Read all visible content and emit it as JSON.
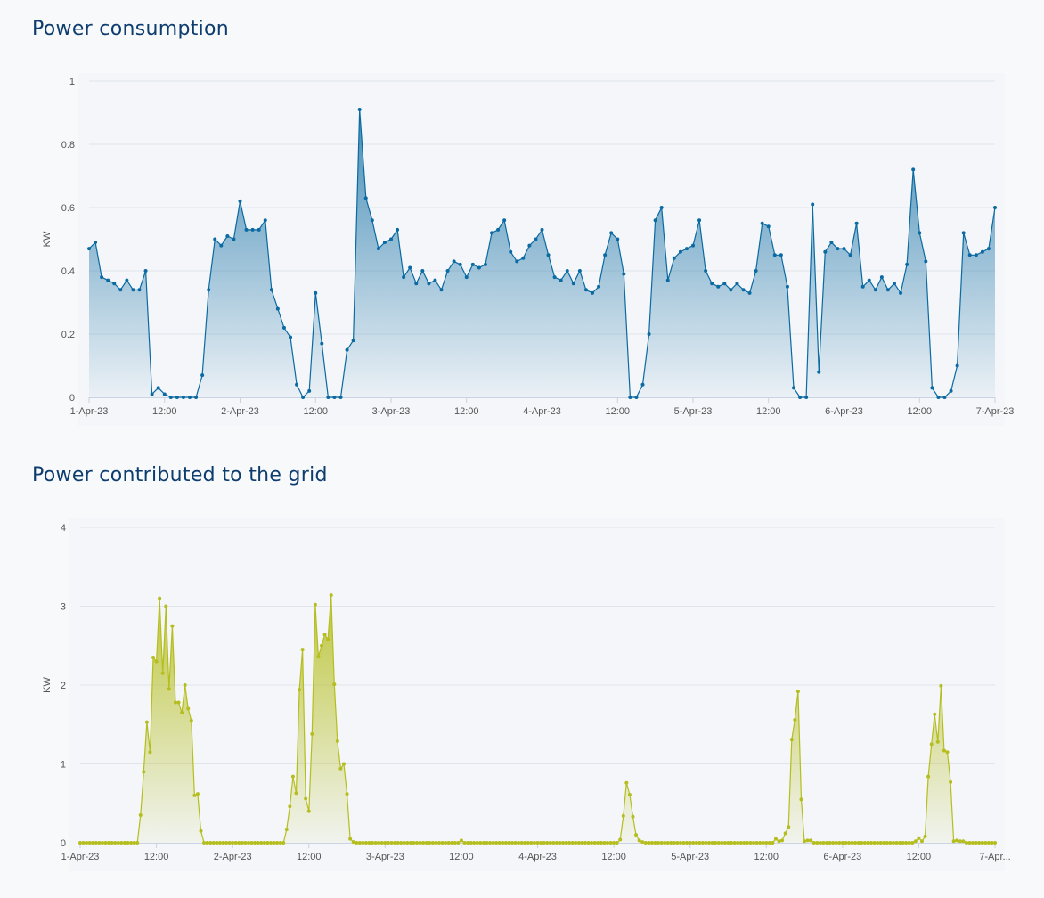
{
  "chart_data": [
    {
      "type": "area",
      "title": "Power consumption",
      "ylabel": "KW",
      "xlabel": "",
      "ylim": [
        0,
        1
      ],
      "yticks": [
        "0",
        "0.2",
        "0.4",
        "0.6",
        "0.8",
        "1"
      ],
      "ytick_values": [
        0,
        0.2,
        0.4,
        0.6,
        0.8,
        1
      ],
      "xticks": [
        "1-Apr-23",
        "12:00",
        "2-Apr-23",
        "12:00",
        "3-Apr-23",
        "12:00",
        "4-Apr-23",
        "12:00",
        "5-Apr-23",
        "12:00",
        "6-Apr-23",
        "12:00",
        "7-Apr-23"
      ],
      "x_start": "2023-04-01 00:00",
      "x_end": "2023-04-07 00:00",
      "interval_minutes": 60,
      "grid": true,
      "color": "#0a6aa1",
      "values": [
        0.47,
        0.49,
        0.38,
        0.37,
        0.36,
        0.34,
        0.37,
        0.34,
        0.34,
        0.4,
        0.01,
        0.03,
        0.01,
        0,
        0,
        0,
        0,
        0,
        0.07,
        0.34,
        0.5,
        0.48,
        0.51,
        0.5,
        0.62,
        0.53,
        0.53,
        0.53,
        0.56,
        0.34,
        0.28,
        0.22,
        0.19,
        0.04,
        0,
        0.02,
        0.33,
        0.17,
        0,
        0,
        0,
        0.15,
        0.18,
        0.91,
        0.63,
        0.56,
        0.47,
        0.49,
        0.5,
        0.53,
        0.38,
        0.41,
        0.36,
        0.4,
        0.36,
        0.37,
        0.34,
        0.4,
        0.43,
        0.42,
        0.38,
        0.42,
        0.41,
        0.42,
        0.52,
        0.53,
        0.56,
        0.46,
        0.43,
        0.44,
        0.48,
        0.5,
        0.53,
        0.45,
        0.38,
        0.37,
        0.4,
        0.36,
        0.4,
        0.34,
        0.33,
        0.35,
        0.45,
        0.52,
        0.5,
        0.39,
        0,
        0,
        0.04,
        0.2,
        0.56,
        0.6,
        0.37,
        0.44,
        0.46,
        0.47,
        0.48,
        0.56,
        0.4,
        0.36,
        0.35,
        0.36,
        0.34,
        0.36,
        0.34,
        0.33,
        0.4,
        0.55,
        0.54,
        0.45,
        0.45,
        0.35,
        0.03,
        0,
        0,
        0.61,
        0.08,
        0.46,
        0.49,
        0.47,
        0.47,
        0.45,
        0.55,
        0.35,
        0.37,
        0.34,
        0.38,
        0.34,
        0.36,
        0.33,
        0.42,
        0.72,
        0.52,
        0.43,
        0.03,
        0,
        0,
        0.02,
        0.1,
        0.52,
        0.45,
        0.45,
        0.46,
        0.47,
        0.6
      ]
    },
    {
      "type": "area",
      "title": "Power contributed to the grid",
      "ylabel": "KW",
      "xlabel": "",
      "ylim": [
        0,
        4
      ],
      "yticks": [
        "0",
        "1",
        "2",
        "3",
        "4"
      ],
      "ytick_values": [
        0,
        1,
        2,
        3,
        4
      ],
      "xticks": [
        "1-Apr-23",
        "12:00",
        "2-Apr-23",
        "12:00",
        "3-Apr-23",
        "12:00",
        "4-Apr-23",
        "12:00",
        "5-Apr-23",
        "12:00",
        "6-Apr-23",
        "12:00",
        "7-Apr..."
      ],
      "x_start": "2023-04-01 00:00",
      "x_end": "2023-04-07 00:00",
      "interval_minutes": 30,
      "grid": true,
      "color": "#b5be1e",
      "values": [
        0,
        0,
        0,
        0,
        0,
        0,
        0,
        0,
        0,
        0,
        0,
        0,
        0,
        0,
        0,
        0,
        0,
        0,
        0,
        0.35,
        0.9,
        1.53,
        1.15,
        2.35,
        2.3,
        3.1,
        2.15,
        3.0,
        1.95,
        2.75,
        1.78,
        1.78,
        1.65,
        2.0,
        1.7,
        1.55,
        0.6,
        0.62,
        0.15,
        0,
        0,
        0,
        0,
        0,
        0,
        0,
        0,
        0,
        0,
        0,
        0,
        0,
        0,
        0,
        0,
        0,
        0,
        0,
        0,
        0,
        0,
        0,
        0,
        0,
        0,
        0.17,
        0.46,
        0.84,
        0.63,
        1.94,
        2.45,
        0.56,
        0.4,
        1.38,
        3.02,
        2.36,
        2.5,
        2.64,
        2.58,
        3.14,
        2.01,
        1.29,
        0.94,
        1.0,
        0.62,
        0.05,
        0.01,
        0,
        0,
        0,
        0,
        0,
        0,
        0,
        0,
        0,
        0,
        0,
        0,
        0,
        0,
        0,
        0,
        0,
        0,
        0,
        0,
        0,
        0,
        0,
        0,
        0,
        0,
        0,
        0,
        0,
        0,
        0,
        0,
        0,
        0.03,
        0,
        0,
        0,
        0,
        0,
        0,
        0,
        0,
        0,
        0,
        0,
        0,
        0,
        0,
        0,
        0,
        0,
        0,
        0,
        0,
        0,
        0,
        0,
        0,
        0,
        0,
        0,
        0,
        0,
        0,
        0,
        0,
        0,
        0,
        0,
        0,
        0,
        0,
        0,
        0,
        0,
        0,
        0,
        0,
        0,
        0,
        0,
        0,
        0,
        0.04,
        0.34,
        0.76,
        0.61,
        0.33,
        0.1,
        0.03,
        0.01,
        0,
        0,
        0,
        0,
        0,
        0,
        0,
        0,
        0,
        0,
        0,
        0,
        0,
        0,
        0,
        0,
        0,
        0,
        0,
        0,
        0,
        0,
        0,
        0,
        0,
        0,
        0,
        0,
        0,
        0,
        0,
        0,
        0,
        0,
        0,
        0,
        0,
        0,
        0,
        0,
        0,
        0.05,
        0.02,
        0.03,
        0.12,
        0.2,
        1.31,
        1.56,
        1.92,
        0.55,
        0.02,
        0.03,
        0.03,
        0,
        0,
        0,
        0,
        0,
        0,
        0,
        0,
        0,
        0,
        0,
        0,
        0,
        0,
        0,
        0,
        0,
        0,
        0,
        0,
        0,
        0,
        0,
        0,
        0,
        0,
        0,
        0,
        0,
        0,
        0,
        0,
        0.02,
        0.06,
        0.02,
        0.08,
        0.84,
        1.25,
        1.63,
        1.28,
        1.99,
        1.17,
        1.15,
        0.77,
        0.02,
        0.03,
        0.02,
        0.02,
        0,
        0,
        0,
        0,
        0,
        0,
        0,
        0,
        0,
        0
      ]
    }
  ]
}
